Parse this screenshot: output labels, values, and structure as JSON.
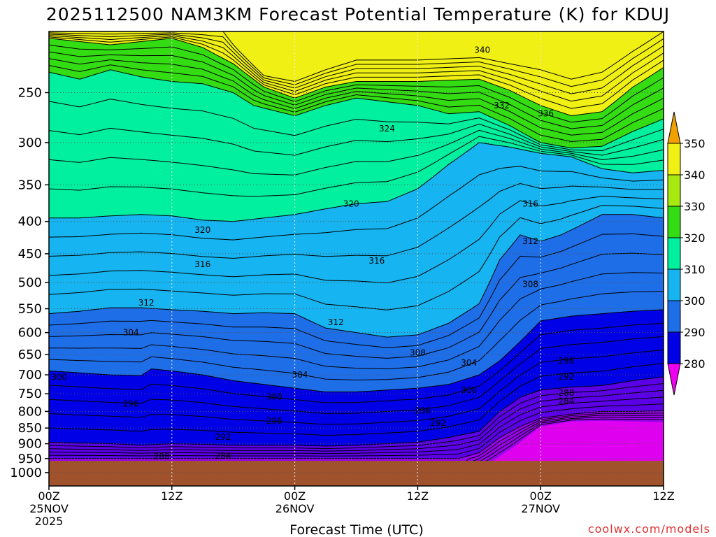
{
  "chart_data": {
    "type": "heatmap",
    "title": "2025112500 NAM3KM Forecast Potential Temperature (K) for KDUJ",
    "xlabel": "Forecast Time (UTC)",
    "ylabel": "",
    "credit": "coolwx.com/models",
    "x_range_hours": [
      0,
      60
    ],
    "y_range_hpa": [
      200,
      1050
    ],
    "y_scale": "log-pressure",
    "x_ticks": [
      {
        "hour": 0,
        "label": "00Z",
        "sub": "25NOV",
        "sub2": "2025"
      },
      {
        "hour": 12,
        "label": "12Z",
        "sub": "",
        "sub2": ""
      },
      {
        "hour": 24,
        "label": "00Z",
        "sub": "26NOV",
        "sub2": ""
      },
      {
        "hour": 36,
        "label": "12Z",
        "sub": "",
        "sub2": ""
      },
      {
        "hour": 48,
        "label": "00Z",
        "sub": "27NOV",
        "sub2": ""
      },
      {
        "hour": 60,
        "label": "12Z",
        "sub": "",
        "sub2": ""
      }
    ],
    "y_ticks": [
      250,
      300,
      350,
      400,
      450,
      500,
      550,
      600,
      650,
      700,
      750,
      800,
      850,
      900,
      950,
      1000
    ],
    "colorbar": {
      "levels": [
        280,
        290,
        300,
        310,
        320,
        330,
        340,
        350
      ],
      "labels": [
        "280",
        "290",
        "300",
        "310",
        "320",
        "330",
        "340",
        "350"
      ],
      "colors": [
        "#9b00f0",
        "#5b00e6",
        "#0000e6",
        "#1e6ee8",
        "#16b4f0",
        "#00f0a0",
        "#34dc14",
        "#a8ea10",
        "#f0f014",
        "#f0a000",
        "#f000f0"
      ]
    },
    "ground": {
      "color": "#a0522d",
      "top_hpa": 958
    },
    "color_bands": [
      {
        "theta": 340,
        "color": "#f0f014",
        "top": [
          [
            0,
            200
          ],
          [
            12,
            200
          ],
          [
            17,
            200
          ],
          [
            18,
            210
          ],
          [
            21,
            235
          ],
          [
            24,
            240
          ],
          [
            27,
            230
          ],
          [
            30,
            222
          ],
          [
            36,
            222
          ],
          [
            42,
            220
          ],
          [
            45,
            225
          ],
          [
            48,
            230
          ],
          [
            51,
            238
          ],
          [
            54,
            232
          ],
          [
            57,
            215
          ],
          [
            60,
            200
          ]
        ]
      },
      {
        "theta": 330,
        "color": "#34dc14",
        "top": [
          [
            0,
            205
          ],
          [
            6,
            210
          ],
          [
            12,
            205
          ],
          [
            15,
            212
          ],
          [
            18,
            225
          ],
          [
            21,
            245
          ],
          [
            24,
            255
          ],
          [
            27,
            245
          ],
          [
            30,
            240
          ],
          [
            36,
            240
          ],
          [
            42,
            238
          ],
          [
            45,
            248
          ],
          [
            48,
            262
          ],
          [
            51,
            272
          ],
          [
            54,
            268
          ],
          [
            57,
            245
          ],
          [
            60,
            228
          ]
        ]
      },
      {
        "theta": 320,
        "color": "#00f0a0",
        "top": [
          [
            0,
            232
          ],
          [
            3,
            238
          ],
          [
            6,
            230
          ],
          [
            9,
            236
          ],
          [
            12,
            240
          ],
          [
            15,
            242
          ],
          [
            18,
            250
          ],
          [
            20,
            262
          ],
          [
            24,
            272
          ],
          [
            27,
            262
          ],
          [
            30,
            255
          ],
          [
            36,
            262
          ],
          [
            39,
            270
          ],
          [
            42,
            268
          ],
          [
            45,
            282
          ],
          [
            48,
            300
          ],
          [
            51,
            306
          ],
          [
            54,
            304
          ],
          [
            57,
            288
          ],
          [
            60,
            275
          ]
        ]
      },
      {
        "theta": 310,
        "color": "#16b4f0",
        "top": [
          [
            0,
            395
          ],
          [
            3,
            395
          ],
          [
            6,
            392
          ],
          [
            9,
            390
          ],
          [
            12,
            392
          ],
          [
            15,
            398
          ],
          [
            18,
            400
          ],
          [
            21,
            395
          ],
          [
            24,
            390
          ],
          [
            27,
            382
          ],
          [
            30,
            375
          ],
          [
            33,
            372
          ],
          [
            36,
            355
          ],
          [
            39,
            325
          ],
          [
            42,
            300
          ],
          [
            45,
            305
          ],
          [
            48,
            312
          ],
          [
            51,
            316
          ],
          [
            54,
            330
          ],
          [
            57,
            335
          ],
          [
            60,
            332
          ]
        ]
      },
      {
        "theta": 300,
        "color": "#1e6ee8",
        "top": [
          [
            0,
            560
          ],
          [
            3,
            555
          ],
          [
            6,
            548
          ],
          [
            9,
            548
          ],
          [
            12,
            552
          ],
          [
            15,
            555
          ],
          [
            18,
            560
          ],
          [
            21,
            558
          ],
          [
            24,
            560
          ],
          [
            27,
            590
          ],
          [
            30,
            600
          ],
          [
            33,
            610
          ],
          [
            36,
            605
          ],
          [
            39,
            580
          ],
          [
            42,
            540
          ],
          [
            44,
            460
          ],
          [
            46,
            420
          ],
          [
            48,
            430
          ],
          [
            50,
            420
          ],
          [
            52,
            405
          ],
          [
            54,
            390
          ],
          [
            57,
            390
          ],
          [
            60,
            395
          ]
        ]
      },
      {
        "theta": 290,
        "color": "#0000e6",
        "top": [
          [
            0,
            690
          ],
          [
            3,
            695
          ],
          [
            6,
            700
          ],
          [
            9,
            702
          ],
          [
            10,
            685
          ],
          [
            12,
            690
          ],
          [
            15,
            700
          ],
          [
            18,
            715
          ],
          [
            21,
            725
          ],
          [
            24,
            735
          ],
          [
            27,
            745
          ],
          [
            30,
            745
          ],
          [
            33,
            740
          ],
          [
            36,
            735
          ],
          [
            39,
            725
          ],
          [
            42,
            700
          ],
          [
            44,
            665
          ],
          [
            46,
            620
          ],
          [
            48,
            575
          ],
          [
            51,
            565
          ],
          [
            54,
            560
          ],
          [
            57,
            555
          ],
          [
            60,
            552
          ]
        ]
      },
      {
        "theta": 280,
        "color": "#5b00e6",
        "top": [
          [
            0,
            895
          ],
          [
            3,
            898
          ],
          [
            6,
            900
          ],
          [
            9,
            905
          ],
          [
            12,
            900
          ],
          [
            15,
            902
          ],
          [
            18,
            905
          ],
          [
            21,
            905
          ],
          [
            24,
            905
          ],
          [
            27,
            908
          ],
          [
            30,
            905
          ],
          [
            33,
            900
          ],
          [
            36,
            895
          ],
          [
            39,
            880
          ],
          [
            42,
            860
          ],
          [
            44,
            800
          ],
          [
            46,
            760
          ],
          [
            48,
            740
          ],
          [
            51,
            732
          ],
          [
            54,
            728
          ],
          [
            57,
            715
          ],
          [
            60,
            705
          ]
        ]
      },
      {
        "theta": 270,
        "color": "#9b00f0",
        "top": [
          [
            0,
            950
          ],
          [
            6,
            950
          ],
          [
            12,
            950
          ],
          [
            18,
            950
          ],
          [
            24,
            950
          ],
          [
            30,
            950
          ],
          [
            36,
            950
          ],
          [
            40,
            950
          ],
          [
            42,
            930
          ],
          [
            44,
            880
          ],
          [
            46,
            845
          ],
          [
            48,
            820
          ],
          [
            51,
            808
          ],
          [
            54,
            800
          ],
          [
            57,
            800
          ],
          [
            60,
            798
          ]
        ]
      },
      {
        "theta": 260,
        "color": "#e000f0",
        "top": [
          [
            0,
            1100
          ],
          [
            40,
            1100
          ],
          [
            41,
            1000
          ],
          [
            43,
            965
          ],
          [
            45,
            920
          ],
          [
            47,
            870
          ],
          [
            48,
            845
          ],
          [
            51,
            830
          ],
          [
            54,
            828
          ],
          [
            57,
            830
          ],
          [
            60,
            832
          ]
        ]
      }
    ],
    "contour_labels": [
      {
        "text": "340",
        "x_hour": 42.3,
        "y_hpa": 214
      },
      {
        "text": "332",
        "x_hour": 44.2,
        "y_hpa": 262
      },
      {
        "text": "336",
        "x_hour": 48.5,
        "y_hpa": 270
      },
      {
        "text": "324",
        "x_hour": 33.0,
        "y_hpa": 285
      },
      {
        "text": "320",
        "x_hour": 29.5,
        "y_hpa": 375
      },
      {
        "text": "320",
        "x_hour": 15.0,
        "y_hpa": 413
      },
      {
        "text": "316",
        "x_hour": 47.0,
        "y_hpa": 375
      },
      {
        "text": "316",
        "x_hour": 15.0,
        "y_hpa": 468
      },
      {
        "text": "316",
        "x_hour": 32.0,
        "y_hpa": 462
      },
      {
        "text": "312",
        "x_hour": 47.0,
        "y_hpa": 430
      },
      {
        "text": "312",
        "x_hour": 9.5,
        "y_hpa": 538
      },
      {
        "text": "312",
        "x_hour": 28.0,
        "y_hpa": 578
      },
      {
        "text": "308",
        "x_hour": 47.0,
        "y_hpa": 503
      },
      {
        "text": "308",
        "x_hour": 36.0,
        "y_hpa": 646
      },
      {
        "text": "304",
        "x_hour": 8.0,
        "y_hpa": 600
      },
      {
        "text": "304",
        "x_hour": 24.5,
        "y_hpa": 700
      },
      {
        "text": "304",
        "x_hour": 41.0,
        "y_hpa": 670
      },
      {
        "text": "300",
        "x_hour": 1.0,
        "y_hpa": 706
      },
      {
        "text": "300",
        "x_hour": 22.0,
        "y_hpa": 758
      },
      {
        "text": "300",
        "x_hour": 41.0,
        "y_hpa": 740
      },
      {
        "text": "296",
        "x_hour": 8.0,
        "y_hpa": 778
      },
      {
        "text": "296",
        "x_hour": 22.0,
        "y_hpa": 828
      },
      {
        "text": "296",
        "x_hour": 36.5,
        "y_hpa": 798
      },
      {
        "text": "296",
        "x_hour": 50.5,
        "y_hpa": 665
      },
      {
        "text": "292",
        "x_hour": 17.0,
        "y_hpa": 878
      },
      {
        "text": "292",
        "x_hour": 38.0,
        "y_hpa": 835
      },
      {
        "text": "292",
        "x_hour": 50.5,
        "y_hpa": 705
      },
      {
        "text": "288",
        "x_hour": 11.0,
        "y_hpa": 943
      },
      {
        "text": "288",
        "x_hour": 50.5,
        "y_hpa": 748
      },
      {
        "text": "284",
        "x_hour": 17.0,
        "y_hpa": 941
      },
      {
        "text": "284",
        "x_hour": 50.5,
        "y_hpa": 770
      }
    ]
  }
}
